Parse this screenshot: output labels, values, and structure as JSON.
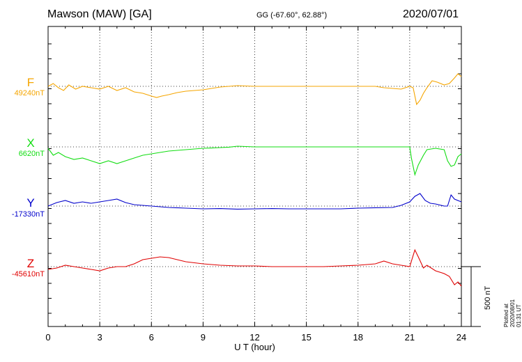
{
  "header": {
    "station": "Mawson (MAW)  [GA]",
    "coords": "GG (-67.60°,  62.88°)",
    "date": "2020/07/01"
  },
  "footer": {
    "plotted": "Plotted at 2020/08/01 01:31 UT",
    "scale": "500 nT"
  },
  "colors": {
    "F": "#f5a500",
    "X": "#11dd11",
    "Y": "#0000cc",
    "Z": "#e00000"
  },
  "chart_data": {
    "type": "line",
    "xlabel": "U T (hour)",
    "xlim": [
      0,
      24
    ],
    "xticks": [
      0,
      3,
      6,
      9,
      12,
      15,
      18,
      21,
      24
    ],
    "tick_labels": [
      "0",
      "3",
      "6",
      "9",
      "12",
      "15",
      "18",
      "21",
      "24"
    ],
    "grid": true,
    "scale_bar_nT": 500,
    "series": [
      {
        "name": "F",
        "baseline_label": "49240nT",
        "baseline_nT": 49240,
        "x": [
          0,
          0.3,
          0.6,
          0.9,
          1.2,
          1.6,
          2,
          2.5,
          3,
          3.5,
          4,
          4.5,
          5,
          5.5,
          6,
          6.3,
          6.6,
          7,
          7.5,
          8,
          8.5,
          9,
          9.5,
          10,
          10.5,
          11,
          12,
          13,
          14,
          15,
          16,
          17,
          18,
          19,
          19.5,
          20,
          20.5,
          21,
          21.2,
          21.4,
          21.6,
          21.8,
          22,
          22.3,
          22.6,
          23,
          23.3,
          23.6,
          23.8,
          24
        ],
        "y": [
          49240,
          49260,
          49230,
          49210,
          49250,
          49220,
          49240,
          49230,
          49220,
          49240,
          49210,
          49230,
          49200,
          49190,
          49170,
          49160,
          49170,
          49180,
          49195,
          49205,
          49210,
          49215,
          49225,
          49235,
          49240,
          49245,
          49240,
          49240,
          49240,
          49240,
          49240,
          49240,
          49240,
          49240,
          49230,
          49225,
          49220,
          49240,
          49230,
          49110,
          49140,
          49190,
          49230,
          49280,
          49270,
          49250,
          49260,
          49300,
          49330,
          49310
        ]
      },
      {
        "name": "X",
        "baseline_label": "6620nT",
        "baseline_nT": 6620,
        "x": [
          0,
          0.3,
          0.6,
          1,
          1.5,
          2,
          2.5,
          3,
          3.5,
          4,
          4.5,
          5,
          5.5,
          6,
          6.5,
          7,
          7.5,
          8,
          8.5,
          9,
          9.5,
          10,
          10.5,
          11,
          12,
          13,
          14,
          15,
          16,
          17,
          18,
          19,
          20,
          21,
          21.1,
          21.3,
          21.5,
          21.8,
          22,
          22.5,
          23,
          23.2,
          23.4,
          23.6,
          23.8,
          24
        ],
        "y": [
          6610,
          6560,
          6580,
          6550,
          6530,
          6540,
          6520,
          6500,
          6520,
          6500,
          6520,
          6540,
          6560,
          6570,
          6580,
          6590,
          6595,
          6600,
          6605,
          6610,
          6612,
          6615,
          6618,
          6625,
          6620,
          6620,
          6620,
          6620,
          6620,
          6620,
          6620,
          6620,
          6620,
          6620,
          6540,
          6420,
          6490,
          6560,
          6600,
          6610,
          6600,
          6520,
          6480,
          6490,
          6550,
          6570
        ]
      },
      {
        "name": "Y",
        "baseline_label": "-17330nT",
        "baseline_nT": -17330,
        "x": [
          0,
          0.5,
          1,
          1.5,
          2,
          2.5,
          3,
          3.5,
          4,
          4.5,
          5,
          5.5,
          6,
          6.5,
          7,
          8,
          9,
          10,
          11,
          12,
          13,
          14,
          15,
          16,
          17,
          18,
          19,
          20,
          20.5,
          21,
          21.3,
          21.6,
          21.9,
          22.2,
          22.5,
          23,
          23.2,
          23.4,
          23.6,
          24
        ],
        "y": [
          -17330,
          -17305,
          -17290,
          -17310,
          -17300,
          -17310,
          -17300,
          -17290,
          -17280,
          -17305,
          -17320,
          -17325,
          -17330,
          -17335,
          -17340,
          -17345,
          -17350,
          -17348,
          -17352,
          -17350,
          -17348,
          -17350,
          -17350,
          -17350,
          -17350,
          -17345,
          -17342,
          -17340,
          -17325,
          -17300,
          -17260,
          -17240,
          -17290,
          -17310,
          -17315,
          -17330,
          -17330,
          -17250,
          -17280,
          -17300
        ]
      },
      {
        "name": "Z",
        "baseline_label": "-45610nT",
        "baseline_nT": -45610,
        "x": [
          0,
          0.5,
          1,
          1.5,
          2,
          2.5,
          3,
          3.5,
          4,
          4.5,
          5,
          5.5,
          6,
          6.5,
          7,
          7.5,
          8,
          9,
          10,
          11,
          12,
          13,
          14,
          15,
          16,
          17,
          18,
          19,
          19.5,
          20,
          20.5,
          21,
          21.3,
          21.5,
          21.8,
          22,
          22.5,
          23,
          23.3,
          23.6,
          23.8,
          24
        ],
        "y": [
          -45630,
          -45620,
          -45600,
          -45610,
          -45620,
          -45630,
          -45640,
          -45620,
          -45610,
          -45610,
          -45590,
          -45560,
          -45550,
          -45540,
          -45545,
          -45560,
          -45575,
          -45590,
          -45600,
          -45605,
          -45605,
          -45610,
          -45610,
          -45610,
          -45610,
          -45605,
          -45600,
          -45590,
          -45570,
          -45590,
          -45600,
          -45610,
          -45490,
          -45540,
          -45620,
          -45600,
          -45640,
          -45660,
          -45680,
          -45740,
          -45720,
          -45750
        ]
      }
    ]
  }
}
